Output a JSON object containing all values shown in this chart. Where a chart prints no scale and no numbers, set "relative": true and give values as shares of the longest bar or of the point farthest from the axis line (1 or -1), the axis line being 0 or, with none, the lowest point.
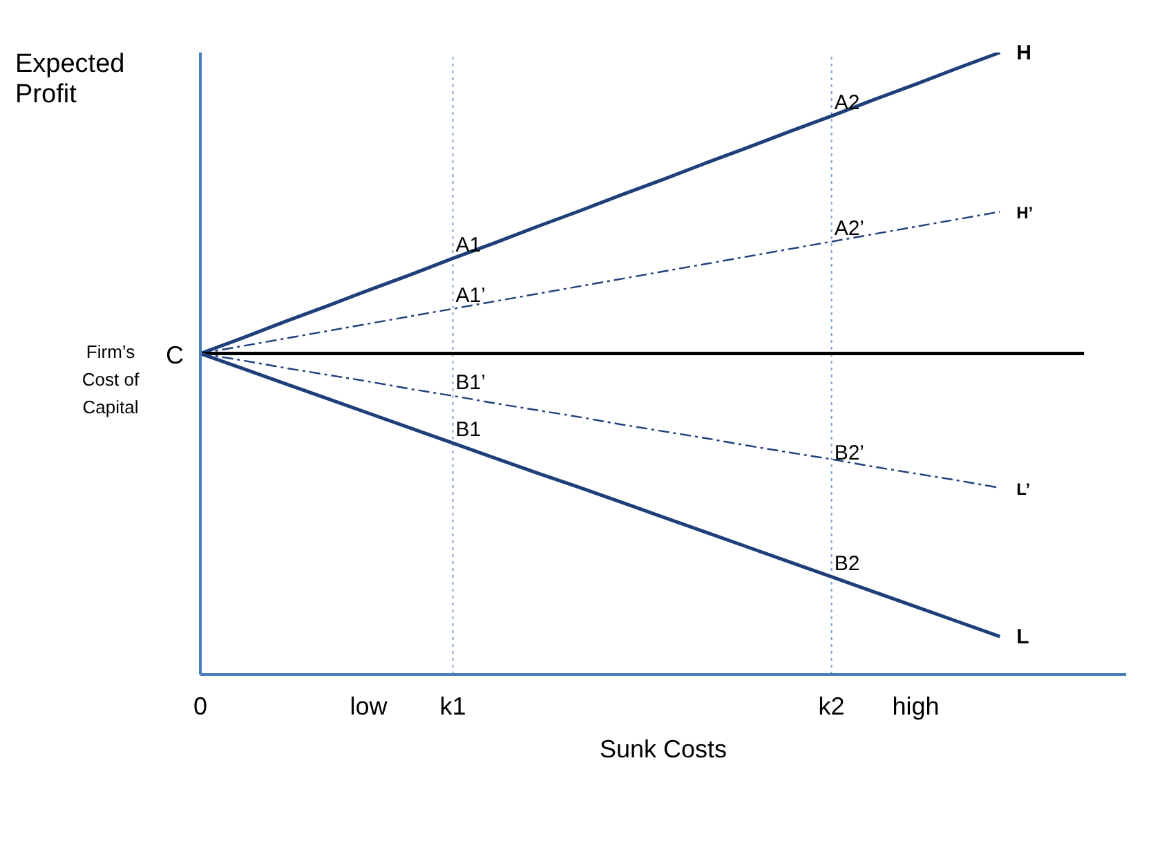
{
  "chart_data": {
    "type": "line",
    "relative": true,
    "ylabel": "Expected Profit",
    "xlabel": "Sunk Costs",
    "categories": [
      "0",
      null,
      null,
      null,
      "low",
      null,
      "k1",
      null,
      null,
      null,
      null,
      null,
      null,
      null,
      null,
      "k2",
      null,
      "high",
      null,
      null,
      null,
      null
    ],
    "series": [
      {
        "name": "H",
        "color": "#1f3f7a",
        "line_style": "solid",
        "values": [
          0.516,
          0.541,
          0.567,
          0.592,
          0.618,
          0.643,
          0.669,
          0.694,
          0.72,
          0.745,
          0.771,
          0.796,
          0.822,
          0.847,
          0.873,
          0.898,
          0.924,
          0.949,
          0.975,
          1.0,
          null,
          null
        ]
      },
      {
        "name": "H’",
        "color": "#1f3f7a",
        "line_style": "dashed",
        "values": [
          0.516,
          0.528,
          0.54,
          0.552,
          0.564,
          0.576,
          0.588,
          0.6,
          0.612,
          0.624,
          0.636,
          0.648,
          0.66,
          0.672,
          0.684,
          0.696,
          0.708,
          0.72,
          0.732,
          0.744,
          null,
          null
        ]
      },
      {
        "color": "#000000",
        "line_style": "solid",
        "values": [
          0.516,
          0.516,
          0.516,
          0.516,
          0.516,
          0.516,
          0.516,
          0.516,
          0.516,
          0.516,
          0.516,
          0.516,
          0.516,
          0.516,
          0.516,
          0.516,
          0.516,
          0.516,
          0.516,
          0.516,
          0.516,
          0.516
        ]
      },
      {
        "name": "L’",
        "color": "#1f3f7a",
        "line_style": "dashed",
        "values": [
          0.516,
          0.505,
          0.493,
          0.482,
          0.471,
          0.459,
          0.448,
          0.436,
          0.425,
          0.414,
          0.402,
          0.391,
          0.38,
          0.368,
          0.357,
          0.346,
          0.334,
          0.323,
          0.312,
          0.3,
          null,
          null
        ]
      },
      {
        "name": "L",
        "color": "#1f3f7a",
        "line_style": "solid",
        "values": [
          0.516,
          0.492,
          0.468,
          0.444,
          0.42,
          0.396,
          0.372,
          0.348,
          0.324,
          0.301,
          0.277,
          0.253,
          0.229,
          0.205,
          0.181,
          0.157,
          0.133,
          0.109,
          0.085,
          0.061,
          null,
          null
        ]
      }
    ],
    "ref_lines": [
      {
        "axis": "x",
        "value": "k1",
        "color": "#7f9fd0",
        "line_style": "dotted"
      },
      {
        "axis": "x",
        "value": "k2",
        "color": "#7f9fd0",
        "line_style": "dotted"
      }
    ],
    "annotations": [
      "Firm’s Cost of Capital",
      {
        "text": "C",
        "x": "0",
        "y": 0.516
      },
      {
        "text": "A1",
        "x": "k1",
        "y": 0.669
      },
      {
        "text": "A2",
        "x": "k2",
        "y": 0.898
      },
      {
        "text": "A1’",
        "x": "k1",
        "y": 0.588
      },
      {
        "text": "A2’",
        "x": "k2",
        "y": 0.696
      },
      {
        "text": "B1’",
        "x": "k1",
        "y": 0.448
      },
      {
        "text": "B1",
        "x": "k1",
        "y": 0.372
      },
      {
        "text": "B2’",
        "x": "k2",
        "y": 0.334
      },
      {
        "text": "B2",
        "x": "k2",
        "y": 0.157
      }
    ],
    "grid": false,
    "legend": false,
    "marker": "none"
  }
}
